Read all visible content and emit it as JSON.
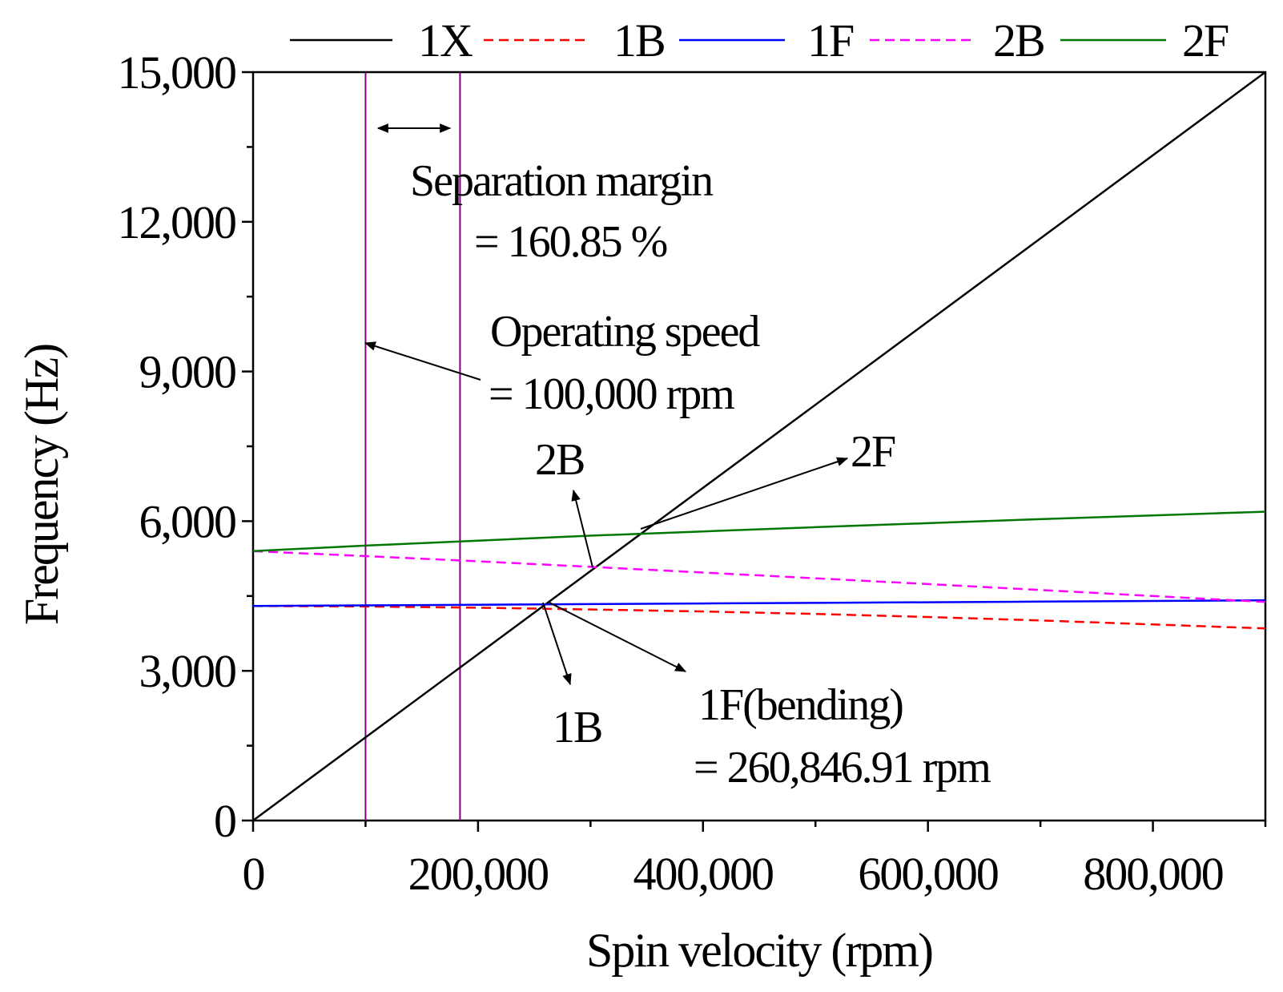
{
  "chart_data": {
    "type": "line",
    "title": "",
    "xlabel": "Spin velocity (rpm)",
    "ylabel": "Frequency (Hz)",
    "xlim": [
      0,
      900000
    ],
    "ylim": [
      0,
      15000
    ],
    "xticks": [
      0,
      200000,
      400000,
      600000,
      800000
    ],
    "xtick_labels": [
      "0",
      "200,000",
      "400,000",
      "600,000",
      "800,000"
    ],
    "yticks": [
      0,
      3000,
      6000,
      9000,
      12000,
      15000
    ],
    "ytick_labels": [
      "0",
      "3,000",
      "6,000",
      "9,000",
      "12,000",
      "15,000"
    ],
    "legend_position": "top",
    "series": [
      {
        "name": "1X",
        "color": "#000000",
        "dash": "solid",
        "x": [
          0,
          900000
        ],
        "y": [
          0,
          15000
        ]
      },
      {
        "name": "1B",
        "color": "#ff0000",
        "dash": "dashed",
        "x": [
          0,
          100000,
          200000,
          300000,
          400000,
          500000,
          600000,
          700000,
          800000,
          900000
        ],
        "y": [
          4300,
          4290,
          4265,
          4230,
          4190,
          4140,
          4080,
          4010,
          3930,
          3850
        ]
      },
      {
        "name": "1F",
        "color": "#0000ff",
        "dash": "solid",
        "x": [
          0,
          100000,
          200000,
          300000,
          400000,
          500000,
          600000,
          700000,
          800000,
          900000
        ],
        "y": [
          4300,
          4312,
          4325,
          4337,
          4350,
          4362,
          4375,
          4387,
          4400,
          4415
        ]
      },
      {
        "name": "2B",
        "color": "#ff00ff",
        "dash": "dashed",
        "x": [
          0,
          100000,
          200000,
          300000,
          400000,
          500000,
          600000,
          700000,
          800000,
          900000
        ],
        "y": [
          5400,
          5300,
          5195,
          5085,
          4970,
          4855,
          4740,
          4620,
          4500,
          4380
        ]
      },
      {
        "name": "2F",
        "color": "#007700",
        "dash": "solid",
        "x": [
          0,
          100000,
          200000,
          300000,
          400000,
          500000,
          600000,
          700000,
          800000,
          900000
        ],
        "y": [
          5400,
          5510,
          5610,
          5710,
          5795,
          5880,
          5960,
          6040,
          6115,
          6190
        ]
      }
    ],
    "vertical_lines": [
      {
        "name": "operating-speed-line",
        "x": 100000,
        "color": "#800080"
      },
      {
        "name": "margin-line",
        "x": 184000,
        "color": "#800080"
      }
    ],
    "annotations": [
      {
        "name": "separation-margin-label",
        "lines": [
          "Separation margin",
          "= 160.85 %"
        ]
      },
      {
        "name": "operating-speed-label",
        "lines": [
          "Operating speed",
          "= 100,000 rpm"
        ]
      },
      {
        "name": "2b-label",
        "lines": [
          "2B"
        ]
      },
      {
        "name": "2f-label",
        "lines": [
          "2F"
        ]
      },
      {
        "name": "1b-label",
        "lines": [
          "1B"
        ]
      },
      {
        "name": "1f-label",
        "lines": [
          "1F(bending)",
          "= 260,846.91 rpm"
        ]
      }
    ]
  }
}
